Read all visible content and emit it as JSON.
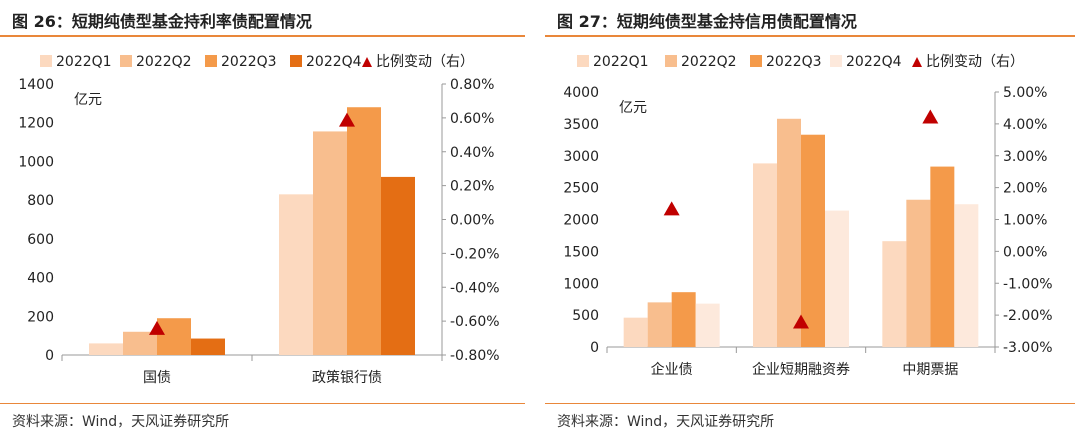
{
  "figures": [
    {
      "title": "图 26：短期纯债型基金持利率债配置情况",
      "source": "资料来源：Wind，天风证券研究所"
    },
    {
      "title": "图 27：短期纯债型基金持信用债配置情况",
      "source": "资料来源：Wind，天风证券研究所"
    }
  ],
  "chart_data": [
    {
      "type": "bar",
      "unit_label": "亿元",
      "categories": [
        "国债",
        "政策银行债"
      ],
      "series": [
        {
          "name": "2022Q1",
          "color": "#FCD9BF",
          "values": [
            60,
            830
          ]
        },
        {
          "name": "2022Q2",
          "color": "#F8BE8E",
          "values": [
            120,
            1155
          ]
        },
        {
          "name": "2022Q3",
          "color": "#F49A4A",
          "values": [
            190,
            1280
          ]
        },
        {
          "name": "2022Q4",
          "color": "#E46E14",
          "values": [
            85,
            920
          ]
        }
      ],
      "ratio_series": {
        "name": "比例变动（右）",
        "color": "#C00000",
        "values": [
          -0.0064,
          0.0059
        ]
      },
      "ylim": [
        0,
        1400
      ],
      "yticks": [
        "0",
        "200",
        "400",
        "600",
        "800",
        "1000",
        "1200",
        "1400"
      ],
      "y2lim": [
        -0.008,
        0.008
      ],
      "y2ticks": [
        "-0.80%",
        "-0.60%",
        "-0.40%",
        "-0.20%",
        "0.00%",
        "0.20%",
        "0.40%",
        "0.60%",
        "0.80%"
      ],
      "legend": "top"
    },
    {
      "type": "bar",
      "unit_label": "亿元",
      "categories": [
        "企业债",
        "企业短期融资券",
        "中期票据"
      ],
      "series": [
        {
          "name": "2022Q1",
          "color": "#FCD9BF",
          "values": [
            460,
            2880,
            1660
          ]
        },
        {
          "name": "2022Q2",
          "color": "#F8BE8E",
          "values": [
            700,
            3580,
            2310
          ]
        },
        {
          "name": "2022Q3",
          "color": "#F49A4A",
          "values": [
            860,
            3330,
            2830
          ]
        },
        {
          "name": "2022Q4",
          "color": "#FDE9DC",
          "values": [
            680,
            2140,
            2240
          ]
        }
      ],
      "ratio_series": {
        "name": "比例变动（右）",
        "color": "#C00000",
        "values": [
          0.0135,
          -0.022,
          0.0423
        ]
      },
      "ylim": [
        0,
        4000
      ],
      "yticks": [
        "0",
        "500",
        "1000",
        "1500",
        "2000",
        "2500",
        "3000",
        "3500",
        "4000"
      ],
      "y2lim": [
        -0.03,
        0.05
      ],
      "y2ticks": [
        "-3.00%",
        "-2.00%",
        "-1.00%",
        "0.00%",
        "1.00%",
        "2.00%",
        "3.00%",
        "4.00%",
        "5.00%"
      ],
      "legend": "top"
    }
  ]
}
